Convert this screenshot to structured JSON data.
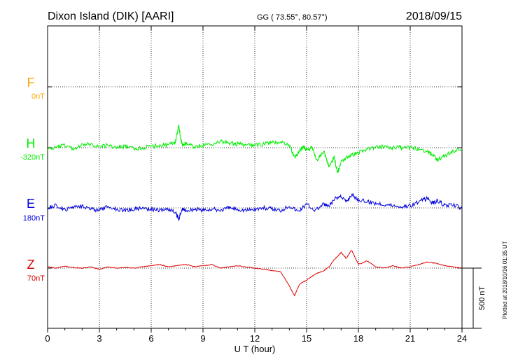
{
  "header": {
    "station": "Dixon Island (DIK)  [AARI]",
    "coords": "GG ( 73.55°,  80.57°)",
    "date": "2018/09/15"
  },
  "footer": {
    "plotted": "Plotted at 2018/10/16 01:35 UT"
  },
  "scale_bar": {
    "label": "500 nT",
    "value_nT": 500
  },
  "colors": {
    "F": "#ffa500",
    "H": "#00ee00",
    "E": "#0000dd",
    "Z": "#dd0000"
  },
  "chart_data": {
    "type": "line",
    "xlabel": "U T (hour)",
    "xlim": [
      0,
      24
    ],
    "x_ticks": [
      0,
      3,
      6,
      9,
      12,
      15,
      18,
      21,
      24
    ],
    "x_tick_labels": [
      "0",
      "3",
      "6",
      "9",
      "12",
      "15",
      "18",
      "21",
      "24"
    ],
    "grid": true,
    "series": [
      {
        "key": "F",
        "name": "F",
        "baseline": "0nT",
        "color": "#ffa500",
        "x": [],
        "values": []
      },
      {
        "key": "H",
        "name": "H",
        "baseline": "-320nT",
        "color": "#00ee00",
        "x": [
          0,
          0.5,
          1,
          1.5,
          2,
          2.5,
          3,
          3.5,
          4,
          4.5,
          5,
          5.5,
          6,
          6.5,
          7,
          7.4,
          7.6,
          7.7,
          7.8,
          8,
          8.5,
          9,
          9.5,
          10,
          10.5,
          11,
          11.5,
          12,
          12.5,
          13,
          13.5,
          14,
          14.3,
          14.5,
          14.8,
          15,
          15.3,
          15.6,
          16,
          16.3,
          16.6,
          16.8,
          17,
          17.3,
          17.6,
          18,
          18.5,
          19,
          19.5,
          20,
          20.5,
          21,
          21.5,
          22,
          22.3,
          22.6,
          23,
          23.5,
          24
        ],
        "values": [
          -330,
          -320,
          -300,
          -330,
          -300,
          -290,
          -310,
          -300,
          -320,
          -310,
          -330,
          -320,
          -310,
          -300,
          -300,
          -270,
          -140,
          -240,
          -300,
          -290,
          -310,
          -300,
          -290,
          -270,
          -280,
          -290,
          -300,
          -300,
          -290,
          -280,
          -270,
          -300,
          -400,
          -370,
          -310,
          -340,
          -320,
          -420,
          -350,
          -480,
          -400,
          -530,
          -430,
          -400,
          -380,
          -360,
          -330,
          -320,
          -310,
          -320,
          -320,
          -320,
          -330,
          -350,
          -380,
          -420,
          -390,
          -350,
          -330
        ]
      },
      {
        "key": "E",
        "name": "E",
        "baseline": "180nT",
        "color": "#0000dd",
        "x": [
          0,
          0.5,
          1,
          1.5,
          2,
          2.5,
          3,
          3.5,
          4,
          4.5,
          5,
          5.5,
          6,
          6.5,
          7,
          7.4,
          7.6,
          7.8,
          8,
          8.5,
          9,
          9.5,
          10,
          10.5,
          11,
          11.5,
          12,
          12.5,
          13,
          13.5,
          14,
          14.5,
          15,
          15.5,
          16,
          16.3,
          16.6,
          17,
          17.3,
          17.6,
          18,
          18.5,
          19,
          19.5,
          20,
          20.5,
          21,
          21.5,
          22,
          22.3,
          22.6,
          23,
          23.5,
          24
        ],
        "values": [
          180,
          200,
          160,
          190,
          200,
          170,
          160,
          190,
          170,
          160,
          170,
          180,
          170,
          160,
          170,
          140,
          90,
          170,
          160,
          170,
          160,
          170,
          160,
          180,
          170,
          160,
          170,
          180,
          170,
          160,
          200,
          150,
          210,
          160,
          210,
          190,
          250,
          280,
          230,
          290,
          250,
          230,
          220,
          210,
          200,
          190,
          200,
          230,
          260,
          220,
          240,
          200,
          200,
          180
        ]
      },
      {
        "key": "Z",
        "name": "Z",
        "baseline": "70nT",
        "color": "#dd0000",
        "x": [
          0,
          0.5,
          1,
          1.5,
          2,
          2.5,
          3,
          3.5,
          4,
          4.5,
          5,
          5.5,
          6,
          6.5,
          7,
          7.5,
          8,
          8.5,
          9,
          9.5,
          10,
          10.5,
          11,
          11.5,
          12,
          12.5,
          13,
          13.5,
          14,
          14.3,
          14.6,
          15,
          15.5,
          16,
          16.3,
          16.6,
          17,
          17.3,
          17.6,
          18,
          18.5,
          19,
          19.5,
          20,
          20.5,
          21,
          21.5,
          22,
          22.5,
          23,
          23.5,
          24
        ],
        "values": [
          80,
          70,
          85,
          75,
          70,
          80,
          60,
          80,
          70,
          75,
          70,
          80,
          90,
          100,
          80,
          90,
          100,
          80,
          90,
          100,
          70,
          80,
          90,
          80,
          70,
          60,
          50,
          40,
          -80,
          -160,
          -60,
          -30,
          20,
          50,
          80,
          140,
          200,
          150,
          220,
          100,
          130,
          80,
          70,
          90,
          70,
          80,
          100,
          120,
          110,
          90,
          80,
          70
        ]
      }
    ]
  }
}
